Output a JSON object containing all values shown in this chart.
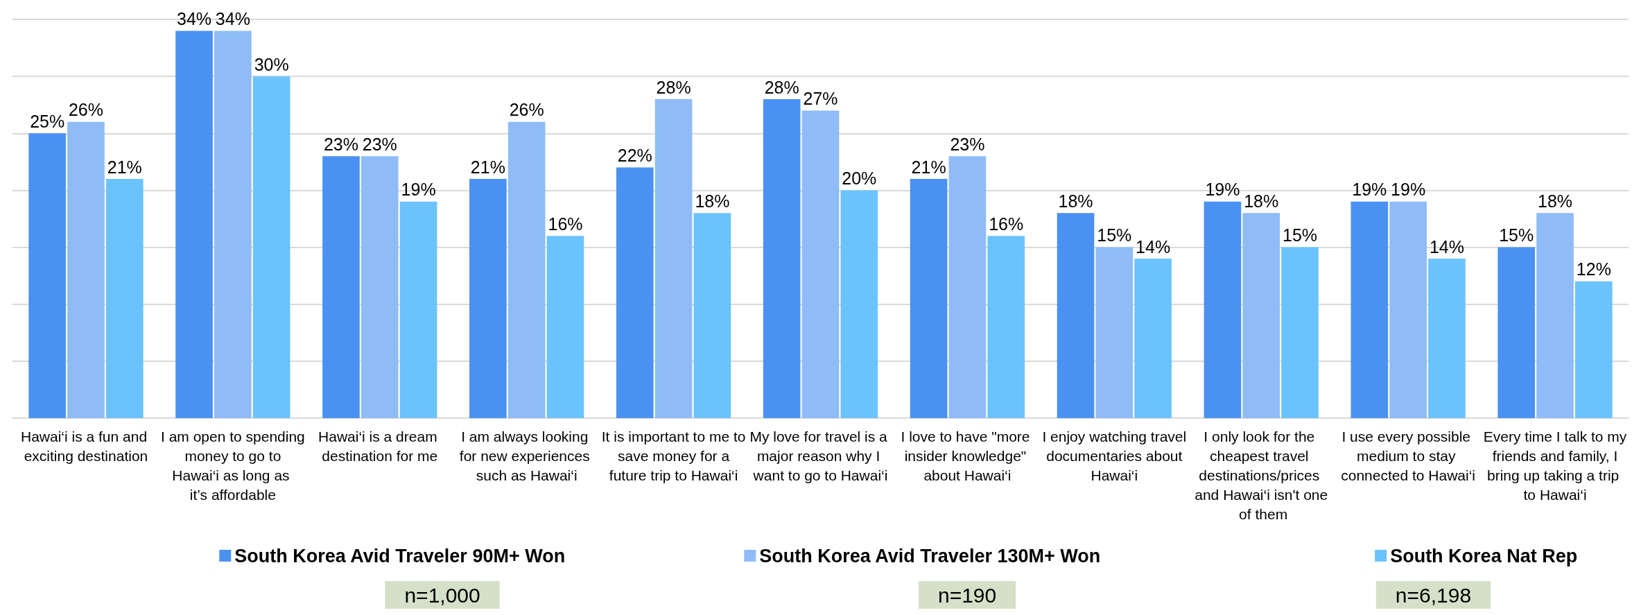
{
  "chart_data": {
    "type": "bar",
    "categories": [
      "Hawai‘i is a fun and exciting destination",
      "I am open to spending money to go to Hawai‘i as long as it’s affordable",
      "Hawai‘i is a dream destination for me",
      "I am always looking for new experiences such as Hawai‘i",
      "It is important to me to save money for a future trip to Hawai‘i",
      "My love for travel is a major reason why I want to go to Hawai‘i",
      "I love to have \"more insider knowledge\" about Hawai‘i",
      "I enjoy watching travel documentaries about Hawai‘i",
      "I only look for the cheapest travel destinations/prices and Hawai‘i isn't one of them",
      "I use every possible medium to stay connected to Hawai‘i",
      "Every time I talk to my friends and family, I bring up taking a trip to Hawai‘i"
    ],
    "series": [
      {
        "name": "South Korea Avid Traveler 90M+ Won",
        "color": "#4b91f1",
        "values": [
          25,
          34,
          23,
          21,
          22,
          28,
          21,
          18,
          19,
          19,
          15
        ],
        "value_labels": [
          "25%",
          "34%",
          "23%",
          "21%",
          "22%",
          "28%",
          "21%",
          "18%",
          "19%",
          "19%",
          "15%"
        ]
      },
      {
        "name": "South Korea Avid Traveler 130M+ Won",
        "color": "#8fbcf7",
        "values": [
          26,
          34,
          23,
          26,
          28,
          27,
          23,
          15,
          18,
          19,
          18
        ],
        "value_labels": [
          "26%",
          "34%",
          "23%",
          "26%",
          "28%",
          "27%",
          "23%",
          "15%",
          "18%",
          "19%",
          "18%"
        ]
      },
      {
        "name": "South Korea Nat Rep",
        "color": "#6bc3fd",
        "values": [
          21,
          30,
          19,
          16,
          18,
          20,
          16,
          14,
          15,
          14,
          12
        ],
        "value_labels": [
          "21%",
          "30%",
          "19%",
          "16%",
          "18%",
          "20%",
          "16%",
          "14%",
          "15%",
          "14%",
          "12%"
        ]
      }
    ],
    "tick_labels": "x",
    "grid": "y",
    "legend": "bottom",
    "annotations": [
      "n=1,000",
      "n=190",
      "n=6,198"
    ]
  }
}
